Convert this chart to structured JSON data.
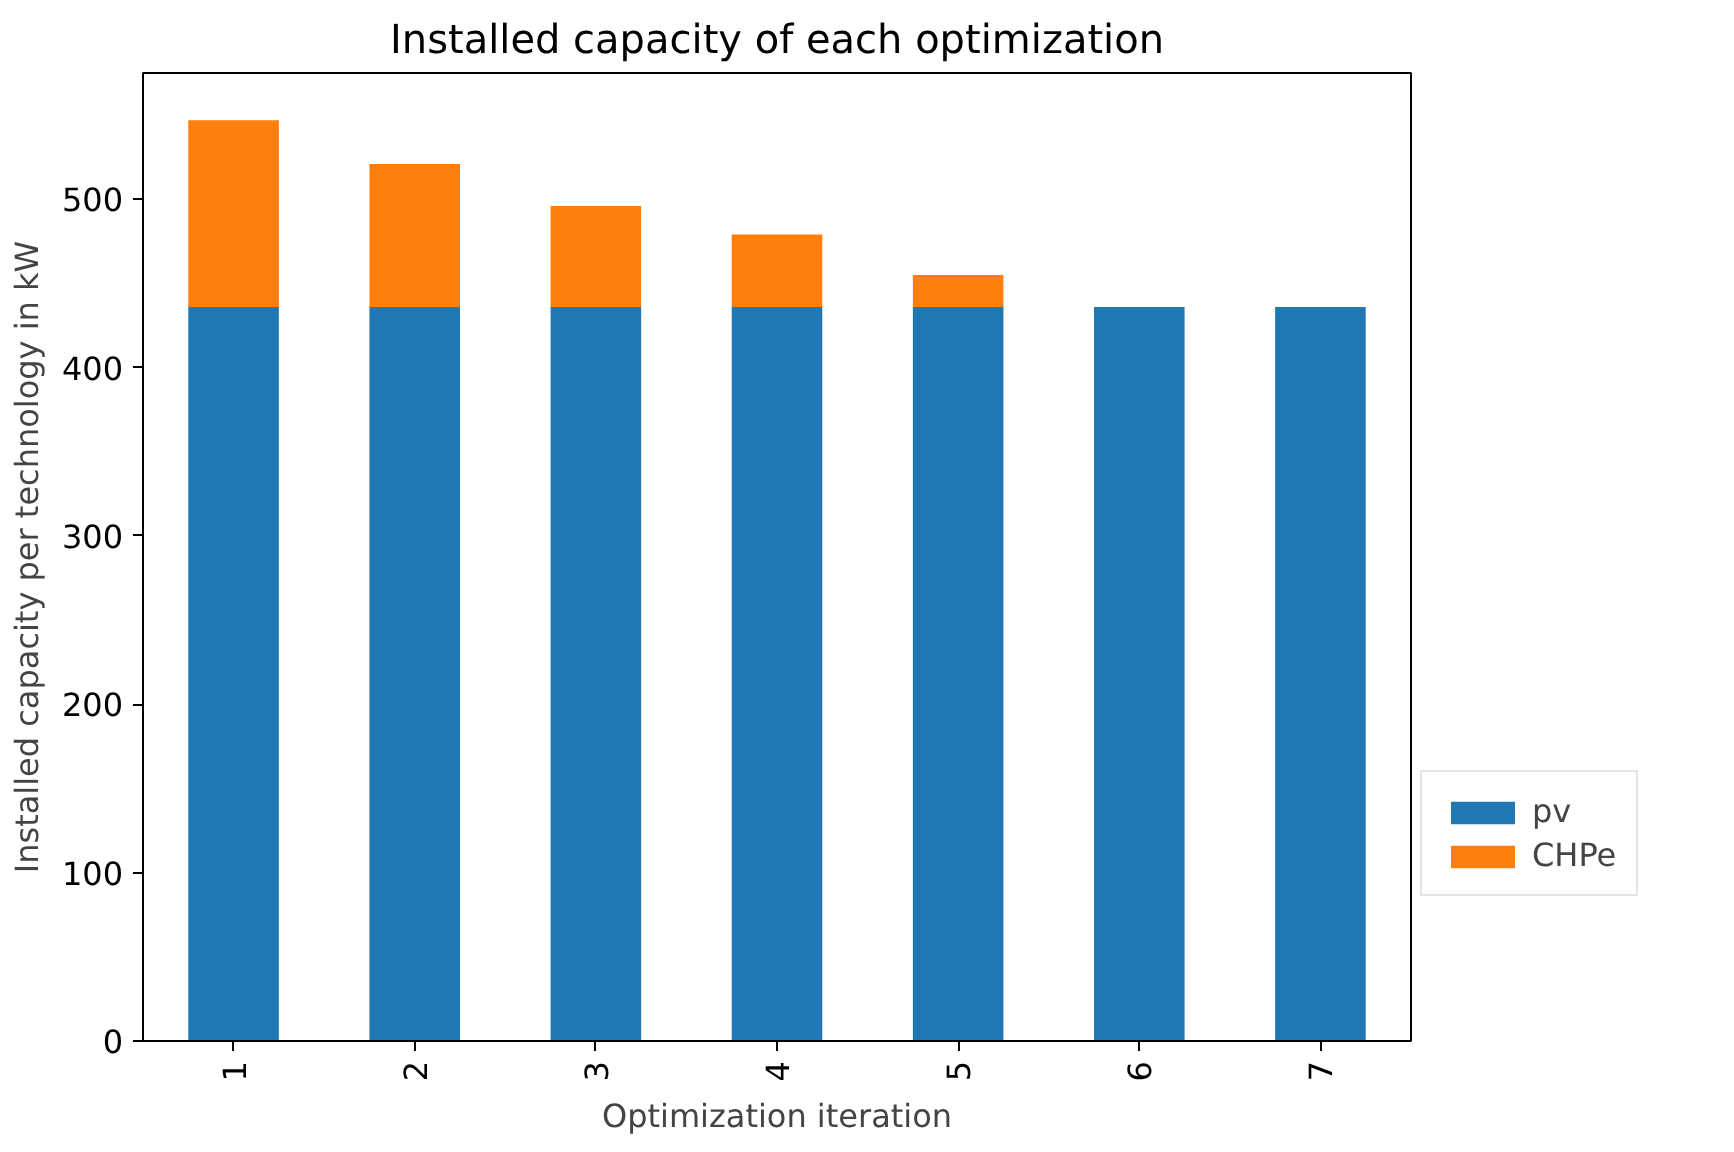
{
  "chart_data": {
    "type": "bar",
    "title": "Installed capacity of each optimization",
    "xlabel": "Optimization iteration",
    "ylabel": "Installed capacity per technology in kW",
    "categories": [
      "1",
      "2",
      "3",
      "4",
      "5",
      "6",
      "7"
    ],
    "stacked": true,
    "series": [
      {
        "name": "pv",
        "color": "#1f77b4",
        "values": [
          436,
          436,
          436,
          436,
          436,
          436,
          436
        ]
      },
      {
        "name": "CHPe",
        "color": "#ff7f0e",
        "values": [
          111,
          85,
          60,
          43,
          19,
          0,
          0
        ]
      }
    ],
    "ylim": [
      0,
      575
    ],
    "yticks": [
      0,
      100,
      200,
      300,
      400,
      500
    ],
    "grid": false,
    "legend": "bottom right"
  }
}
